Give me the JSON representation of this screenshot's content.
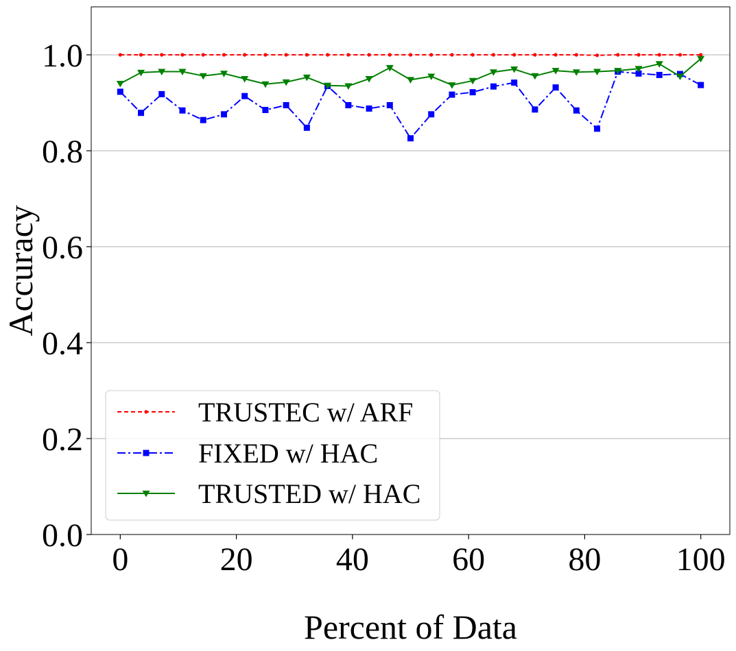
{
  "chart_data": {
    "type": "line",
    "xlabel": "Percent of Data",
    "ylabel": "Accuracy",
    "xlim": [
      -5,
      105
    ],
    "ylim": [
      0.0,
      1.1
    ],
    "x_ticks": [
      "0",
      "20",
      "40",
      "60",
      "80",
      "100"
    ],
    "y_ticks": [
      "0.0",
      "0.2",
      "0.4",
      "0.6",
      "0.8",
      "1.0"
    ],
    "y_grid": true,
    "legend_position": "lower-left",
    "x": [
      0,
      3.57,
      7.14,
      10.71,
      14.29,
      17.86,
      21.43,
      25,
      28.57,
      32.14,
      35.71,
      39.29,
      42.86,
      46.43,
      50,
      53.57,
      57.14,
      60.71,
      64.29,
      67.86,
      71.43,
      75,
      78.57,
      82.14,
      85.71,
      89.29,
      92.86,
      96.43,
      100
    ],
    "series": [
      {
        "name": "TRUSTEC w/ ARF",
        "color": "#ff0000",
        "line_style": "dashed",
        "marker": "point",
        "values": [
          1.0,
          1.0,
          1.0,
          1.0,
          1.0,
          1.0,
          1.0,
          1.0,
          1.0,
          1.0,
          1.0,
          1.0,
          1.0,
          1.0,
          1.0,
          1.0,
          1.0,
          1.0,
          1.0,
          1.0,
          1.0,
          1.0,
          1.0,
          0.999,
          1.0,
          1.0,
          1.0,
          1.0,
          1.0
        ]
      },
      {
        "name": "FIXED w/ HAC",
        "color": "#0000ff",
        "line_style": "dash-dot",
        "marker": "square",
        "values": [
          0.923,
          0.879,
          0.918,
          0.884,
          0.864,
          0.876,
          0.914,
          0.885,
          0.895,
          0.848,
          0.935,
          0.895,
          0.888,
          0.895,
          0.826,
          0.876,
          0.917,
          0.922,
          0.934,
          0.942,
          0.886,
          0.932,
          0.884,
          0.846,
          0.965,
          0.961,
          0.958,
          0.96,
          0.937
        ]
      },
      {
        "name": "TRUSTED w/ HAC",
        "color": "#008000",
        "line_style": "solid",
        "marker": "triangle-down",
        "values": [
          0.94,
          0.963,
          0.965,
          0.965,
          0.956,
          0.961,
          0.95,
          0.939,
          0.943,
          0.953,
          0.936,
          0.935,
          0.95,
          0.973,
          0.948,
          0.955,
          0.937,
          0.946,
          0.964,
          0.97,
          0.956,
          0.967,
          0.964,
          0.965,
          0.967,
          0.971,
          0.981,
          0.955,
          0.992
        ]
      }
    ]
  }
}
